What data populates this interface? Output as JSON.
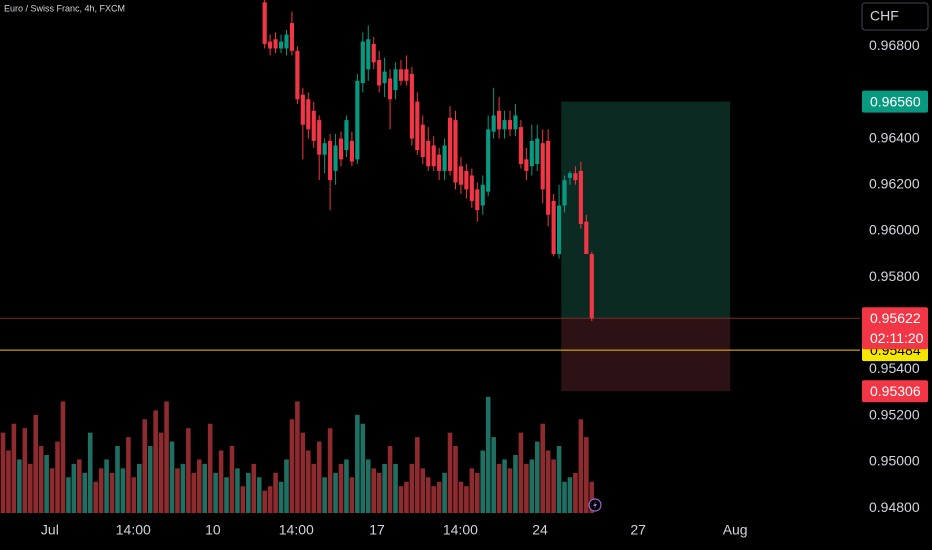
{
  "chart_data": {
    "type": "candlestick",
    "title": "Euro / Swiss Franc, 4h, FXCM",
    "currency": "CHF",
    "open": [
      null,
      null,
      null,
      null,
      null,
      null,
      null,
      null,
      null,
      null,
      null,
      null,
      null,
      null,
      null,
      null,
      null,
      null,
      null,
      null,
      null,
      null,
      null,
      null,
      null,
      null,
      null,
      null,
      null,
      null,
      null,
      null,
      null,
      null,
      null,
      null,
      null,
      null,
      null,
      null,
      null,
      null,
      null,
      null,
      null,
      null,
      null,
      null,
      0.9699,
      0.9682,
      0.9683,
      0.9679,
      0.9679,
      0.969,
      0.9678,
      0.9659,
      0.9657,
      0.9652,
      0.9648,
      0.9633,
      0.9639,
      0.9626,
      0.964,
      0.9635,
      0.9639,
      0.9631,
      0.9664,
      0.967,
      0.9681,
      0.9674,
      0.9664,
      0.9666,
      0.9661,
      0.967,
      0.967,
      0.9668,
      0.9656,
      0.9646,
      0.9639,
      0.9637,
      0.9633,
      0.9626,
      0.9649,
      0.9648,
      0.9628,
      0.9626,
      0.9624,
      0.9618,
      0.9611,
      0.9617,
      0.9643,
      0.9652,
      0.9644,
      0.9648,
      0.9644,
      0.9645,
      0.9631,
      0.9628,
      0.9629,
      0.9638,
      0.9639,
      0.9613,
      0.959,
      0.9611,
      0.9623,
      0.9625,
      0.9626,
      0.9604,
      0.959
    ],
    "high": [
      null,
      null,
      null,
      null,
      null,
      null,
      null,
      null,
      null,
      null,
      null,
      null,
      null,
      null,
      null,
      null,
      null,
      null,
      null,
      null,
      null,
      null,
      null,
      null,
      null,
      null,
      null,
      null,
      null,
      null,
      null,
      null,
      null,
      null,
      null,
      null,
      null,
      null,
      null,
      null,
      null,
      null,
      null,
      null,
      null,
      null,
      null,
      null,
      0.97,
      0.9685,
      0.9686,
      0.9685,
      0.9687,
      0.9695,
      0.968,
      0.9662,
      0.966,
      0.9656,
      0.965,
      0.964,
      0.9642,
      0.9642,
      0.9643,
      0.965,
      0.9643,
      0.9668,
      0.9686,
      0.9689,
      0.9684,
      0.9678,
      0.9675,
      0.967,
      0.9673,
      0.9674,
      0.9676,
      0.9671,
      0.966,
      0.965,
      0.9645,
      0.9641,
      0.9636,
      0.964,
      0.9654,
      0.9652,
      0.9632,
      0.9629,
      0.9627,
      0.9621,
      0.9624,
      0.965,
      0.9662,
      0.9658,
      0.9652,
      0.9652,
      0.9655,
      0.9648,
      0.9636,
      0.9646,
      0.9646,
      0.9644,
      0.9644,
      0.9616,
      0.962,
      0.9624,
      0.9626,
      0.9628,
      0.963,
      0.9607,
      0.9591
    ],
    "low": [
      null,
      null,
      null,
      null,
      null,
      null,
      null,
      null,
      null,
      null,
      null,
      null,
      null,
      null,
      null,
      null,
      null,
      null,
      null,
      null,
      null,
      null,
      null,
      null,
      null,
      null,
      null,
      null,
      null,
      null,
      null,
      null,
      null,
      null,
      null,
      null,
      null,
      null,
      null,
      null,
      null,
      null,
      null,
      null,
      null,
      null,
      null,
      null,
      0.9679,
      0.9676,
      0.9677,
      0.9677,
      0.9676,
      0.9676,
      0.9655,
      0.9631,
      0.964,
      0.9636,
      0.9622,
      0.9625,
      0.9609,
      0.962,
      0.9628,
      0.9632,
      0.9628,
      0.9629,
      0.966,
      0.9665,
      0.967,
      0.966,
      0.9658,
      0.9644,
      0.9657,
      0.9663,
      0.9663,
      0.9637,
      0.9633,
      0.9629,
      0.9626,
      0.9626,
      0.9622,
      0.9622,
      0.9624,
      0.9618,
      0.9616,
      0.9614,
      0.961,
      0.9604,
      0.9607,
      0.9615,
      0.964,
      0.964,
      0.964,
      0.9641,
      0.9641,
      0.9627,
      0.9622,
      0.9624,
      0.9626,
      0.9612,
      0.9602,
      0.9589,
      0.9588,
      0.9608,
      0.962,
      0.962,
      0.9601,
      0.959,
      0.9561
    ],
    "close": [
      null,
      null,
      null,
      null,
      null,
      null,
      null,
      null,
      null,
      null,
      null,
      null,
      null,
      null,
      null,
      null,
      null,
      null,
      null,
      null,
      null,
      null,
      null,
      null,
      null,
      null,
      null,
      null,
      null,
      null,
      null,
      null,
      null,
      null,
      null,
      null,
      null,
      null,
      null,
      null,
      null,
      null,
      null,
      null,
      null,
      null,
      null,
      null,
      0.9681,
      0.9679,
      0.9679,
      0.9682,
      0.9685,
      0.9678,
      0.9657,
      0.9646,
      0.9644,
      0.9639,
      0.9633,
      0.9638,
      0.9622,
      0.9637,
      0.9631,
      0.9648,
      0.963,
      0.9665,
      0.9682,
      0.9683,
      0.9673,
      0.9663,
      0.9669,
      0.9657,
      0.967,
      0.9665,
      0.9665,
      0.964,
      0.9635,
      0.9632,
      0.9628,
      0.9628,
      0.9626,
      0.9637,
      0.9626,
      0.9621,
      0.962,
      0.9618,
      0.9613,
      0.9609,
      0.962,
      0.9644,
      0.965,
      0.9644,
      0.9648,
      0.9644,
      0.965,
      0.9629,
      0.9626,
      0.9639,
      0.964,
      0.9618,
      0.9607,
      0.959,
      0.9611,
      0.9622,
      0.9625,
      0.9622,
      0.9603,
      0.959,
      0.95622
    ],
    "up_color": "#089981",
    "down_color": "#f23645",
    "volume": {
      "lim": [
        0,
        140
      ],
      "up_color": "#1f6f63",
      "down_color": "#8e2b2f",
      "up": [
        null,
        null,
        null,
        60,
        null,
        null,
        null,
        null,
        65,
        null,
        null,
        null,
        40,
        55,
        null,
        45,
        90,
        null,
        null,
        60,
        null,
        75,
        50,
        null,
        null,
        55,
        null,
        75,
        null,
        null,
        null,
        80,
        null,
        55,
        null,
        null,
        null,
        55,
        null,
        45,
        null,
        40,
        null,
        50,
        null,
        45,
        null,
        40,
        null,
        null,
        null,
        35,
        60,
        null,
        null,
        null,
        null,
        null,
        null,
        40,
        null,
        45,
        null,
        60,
        null,
        110,
        100,
        60,
        null,
        null,
        55,
        null,
        55,
        null,
        null,
        null,
        null,
        null,
        null,
        null,
        null,
        45,
        null,
        null,
        null,
        null,
        null,
        null,
        70,
        130,
        85,
        null,
        60,
        null,
        65,
        null,
        null,
        60,
        80,
        null,
        null,
        null,
        75,
        35,
        40,
        null,
        null,
        null,
        null
      ],
      "down": [
        90,
        70,
        100,
        null,
        95,
        55,
        110,
        75,
        null,
        50,
        80,
        125,
        null,
        null,
        60,
        null,
        null,
        35,
        50,
        null,
        45,
        null,
        null,
        85,
        40,
        null,
        105,
        null,
        115,
        90,
        125,
        null,
        50,
        null,
        95,
        45,
        60,
        null,
        100,
        null,
        70,
        null,
        75,
        null,
        30,
        null,
        55,
        null,
        25,
        30,
        45,
        null,
        null,
        105,
        125,
        90,
        70,
        55,
        80,
        null,
        95,
        null,
        55,
        null,
        40,
        null,
        null,
        null,
        50,
        45,
        null,
        75,
        null,
        30,
        35,
        55,
        85,
        50,
        40,
        30,
        35,
        null,
        90,
        75,
        35,
        30,
        50,
        45,
        null,
        null,
        null,
        55,
        null,
        50,
        null,
        90,
        55,
        null,
        null,
        100,
        70,
        60,
        null,
        null,
        null,
        45,
        105,
        85,
        35
      ]
    },
    "xlim": [
      -0.55,
      157.2
    ],
    "ylim": [
      0.9477,
      0.97
    ],
    "xticks": [
      {
        "value": 8.6,
        "label": "Jul"
      },
      {
        "value": 23.9,
        "label": "14:00"
      },
      {
        "value": 38.5,
        "label": "10"
      },
      {
        "value": 53.8,
        "label": "14:00"
      },
      {
        "value": 68.6,
        "label": "17"
      },
      {
        "value": 83.9,
        "label": "14:00"
      },
      {
        "value": 98.5,
        "label": "24"
      },
      {
        "value": 116.5,
        "label": "27"
      },
      {
        "value": 134.3,
        "label": "Aug"
      }
    ],
    "yticks": [
      {
        "value": 0.968,
        "label": "0.96800"
      },
      {
        "value": 0.964,
        "label": "0.96400"
      },
      {
        "value": 0.962,
        "label": "0.96200"
      },
      {
        "value": 0.96,
        "label": "0.96000"
      },
      {
        "value": 0.958,
        "label": "0.95800"
      },
      {
        "value": 0.954,
        "label": "0.95400"
      },
      {
        "value": 0.952,
        "label": "0.95200"
      },
      {
        "value": 0.95,
        "label": "0.95000"
      },
      {
        "value": 0.948,
        "label": "0.94800"
      }
    ],
    "position": {
      "from": 102.4,
      "to": 133.4,
      "target": 0.9656,
      "entry": 0.95622,
      "stop": 0.95306
    },
    "lines": [
      {
        "value": 0.95622,
        "color": "#7a2a2a"
      },
      {
        "value": 0.95484,
        "color": "#f5c400"
      }
    ],
    "tags": [
      {
        "value": 0.9656,
        "label": "0.96560",
        "color": "#089981",
        "text_color": "#ffffff"
      },
      {
        "value": 0.95484,
        "label": "0.95484",
        "color": "#f5e600",
        "text_color": "#000000"
      },
      {
        "value": 0.95622,
        "label": "0.95622",
        "countdown": "02:11:20",
        "color": "#f23645",
        "text_color": "#ffffff"
      },
      {
        "value": 0.95306,
        "label": "0.95306",
        "color": "#f23645",
        "text_color": "#ffffff"
      }
    ]
  }
}
